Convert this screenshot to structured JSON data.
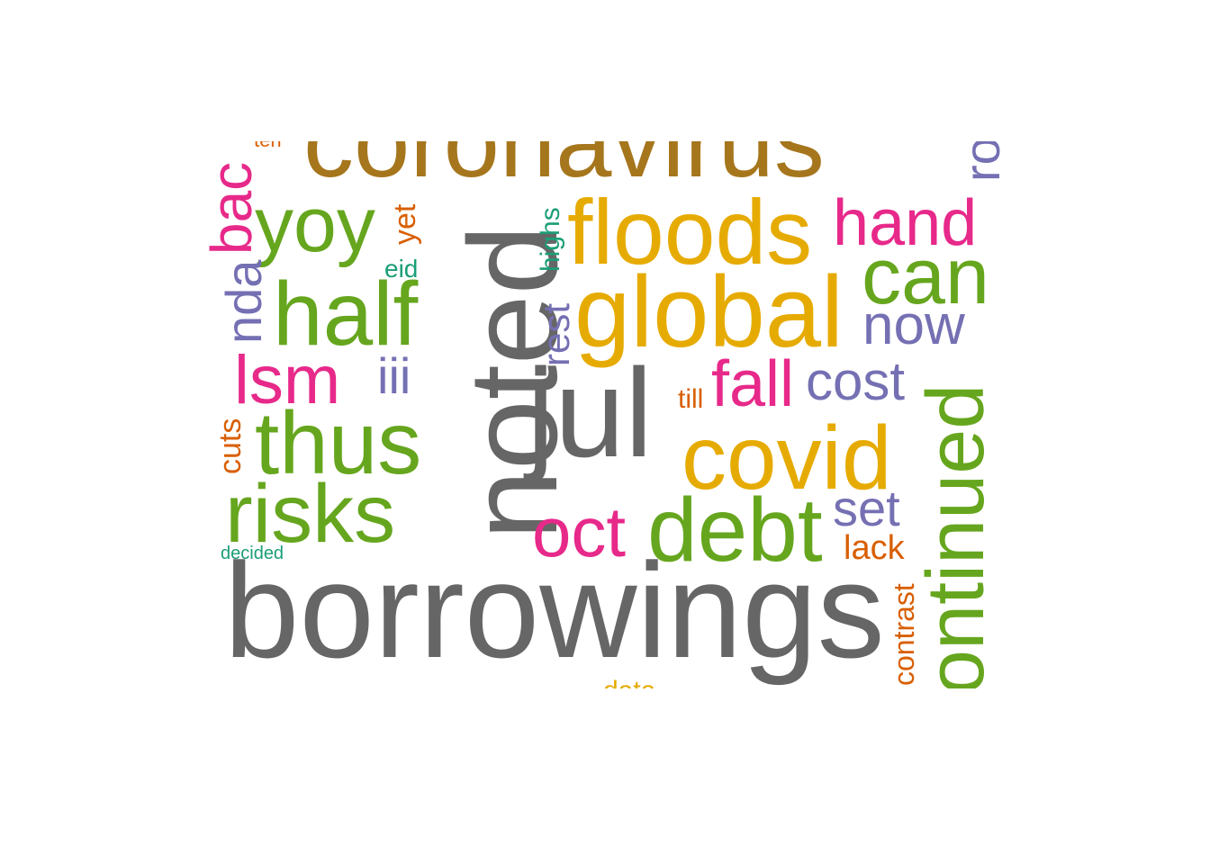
{
  "word_cloud": {
    "colors": {
      "gray": "#666666",
      "olive": "#A6761D",
      "gold": "#E6AB02",
      "green": "#66A61E",
      "magenta": "#E7298A",
      "purple": "#7570B3",
      "orange": "#D95F02",
      "teal": "#1B9E77"
    },
    "words": [
      {
        "text": "borrowings",
        "color": "gray"
      },
      {
        "text": "noted",
        "color": "gray"
      },
      {
        "text": "coronavirus",
        "color": "olive"
      },
      {
        "text": "jul",
        "color": "gray"
      },
      {
        "text": "global",
        "color": "gold"
      },
      {
        "text": "floods",
        "color": "gold"
      },
      {
        "text": "covid",
        "color": "gold"
      },
      {
        "text": "debt",
        "color": "green"
      },
      {
        "text": "half",
        "color": "green"
      },
      {
        "text": "thus",
        "color": "green"
      },
      {
        "text": "risks",
        "color": "green"
      },
      {
        "text": "yoy",
        "color": "green"
      },
      {
        "text": "can",
        "color": "green"
      },
      {
        "text": "ontinued",
        "color": "green"
      },
      {
        "text": "hand",
        "color": "magenta"
      },
      {
        "text": "oct",
        "color": "magenta"
      },
      {
        "text": "lsm",
        "color": "magenta"
      },
      {
        "text": "fall",
        "color": "magenta"
      },
      {
        "text": "bac",
        "color": "magenta"
      },
      {
        "text": "now",
        "color": "purple"
      },
      {
        "text": "cost",
        "color": "purple"
      },
      {
        "text": "set",
        "color": "purple"
      },
      {
        "text": "nda",
        "color": "purple"
      },
      {
        "text": "iii",
        "color": "purple"
      },
      {
        "text": "rest",
        "color": "purple"
      },
      {
        "text": "ro",
        "color": "purple"
      },
      {
        "text": "yet",
        "color": "orange"
      },
      {
        "text": "cuts",
        "color": "orange"
      },
      {
        "text": "till",
        "color": "orange"
      },
      {
        "text": "lack",
        "color": "orange"
      },
      {
        "text": "contrast",
        "color": "orange"
      },
      {
        "text": "ten",
        "color": "orange"
      },
      {
        "text": "eid",
        "color": "teal"
      },
      {
        "text": "highs",
        "color": "teal"
      },
      {
        "text": "decided",
        "color": "teal"
      },
      {
        "text": "data",
        "color": "gold"
      }
    ]
  }
}
